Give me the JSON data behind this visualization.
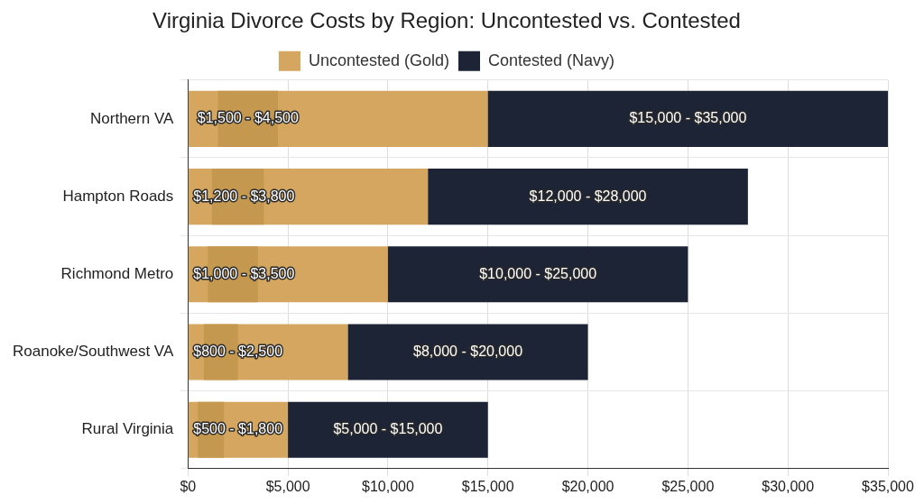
{
  "chart_data": {
    "type": "bar",
    "orientation": "horizontal",
    "title": "Virginia Divorce Costs by Region: Uncontested vs. Contested",
    "categories": [
      "Northern VA",
      "Hampton Roads",
      "Richmond Metro",
      "Roanoke/Southwest VA",
      "Rural Virginia"
    ],
    "series": [
      {
        "name": "Uncontested (Gold)",
        "color": "#d4a65f",
        "base": [
          0,
          0,
          0,
          0,
          0
        ],
        "values": [
          15000,
          12000,
          10000,
          8000,
          5000
        ]
      },
      {
        "name": "Contested (Navy)",
        "color": "#1d2436",
        "base": [
          15000,
          12000,
          10000,
          8000,
          5000
        ],
        "values": [
          20000,
          16000,
          15000,
          12000,
          10000
        ]
      },
      {
        "color": "#c4984f",
        "base": [
          1500,
          1200,
          1000,
          800,
          500
        ],
        "values": [
          3000,
          2600,
          2500,
          1700,
          1300
        ]
      }
    ],
    "annotations": [
      {
        "text": "$1,500 - $4,500",
        "x": 3000,
        "y": "Northern VA"
      },
      {
        "text": "$15,000 - $35,000",
        "x": 25000,
        "y": "Northern VA"
      },
      {
        "text": "$1,200 - $3,800",
        "x": 2500,
        "y": "Hampton Roads"
      },
      {
        "text": "$12,000 - $28,000",
        "x": 20000,
        "y": "Hampton Roads"
      },
      {
        "text": "$1,000 - $3,500",
        "x": 2250,
        "y": "Richmond Metro"
      },
      {
        "text": "$10,000 - $25,000",
        "x": 17500,
        "y": "Richmond Metro"
      },
      {
        "text": "$800 - $2,500",
        "x": 1650,
        "y": "Roanoke/Southwest VA"
      },
      {
        "text": "$8,000 - $20,000",
        "x": 14000,
        "y": "Roanoke/Southwest VA"
      },
      {
        "text": "$500 - $1,800",
        "x": 1150,
        "y": "Rural Virginia"
      },
      {
        "text": "$5,000 - $15,000",
        "x": 10000,
        "y": "Rural Virginia"
      }
    ],
    "xlim": [
      0,
      35000
    ],
    "xticks": [
      {
        "value": 0,
        "label": "$0"
      },
      {
        "value": 5000,
        "label": "$5,000"
      },
      {
        "value": 10000,
        "label": "$10,000"
      },
      {
        "value": 15000,
        "label": "$15,000"
      },
      {
        "value": 20000,
        "label": "$20,000"
      },
      {
        "value": 25000,
        "label": "$25,000"
      },
      {
        "value": 30000,
        "label": "$30,000"
      },
      {
        "value": 35000,
        "label": "$35,000"
      }
    ],
    "grid": true,
    "legend": "top"
  }
}
